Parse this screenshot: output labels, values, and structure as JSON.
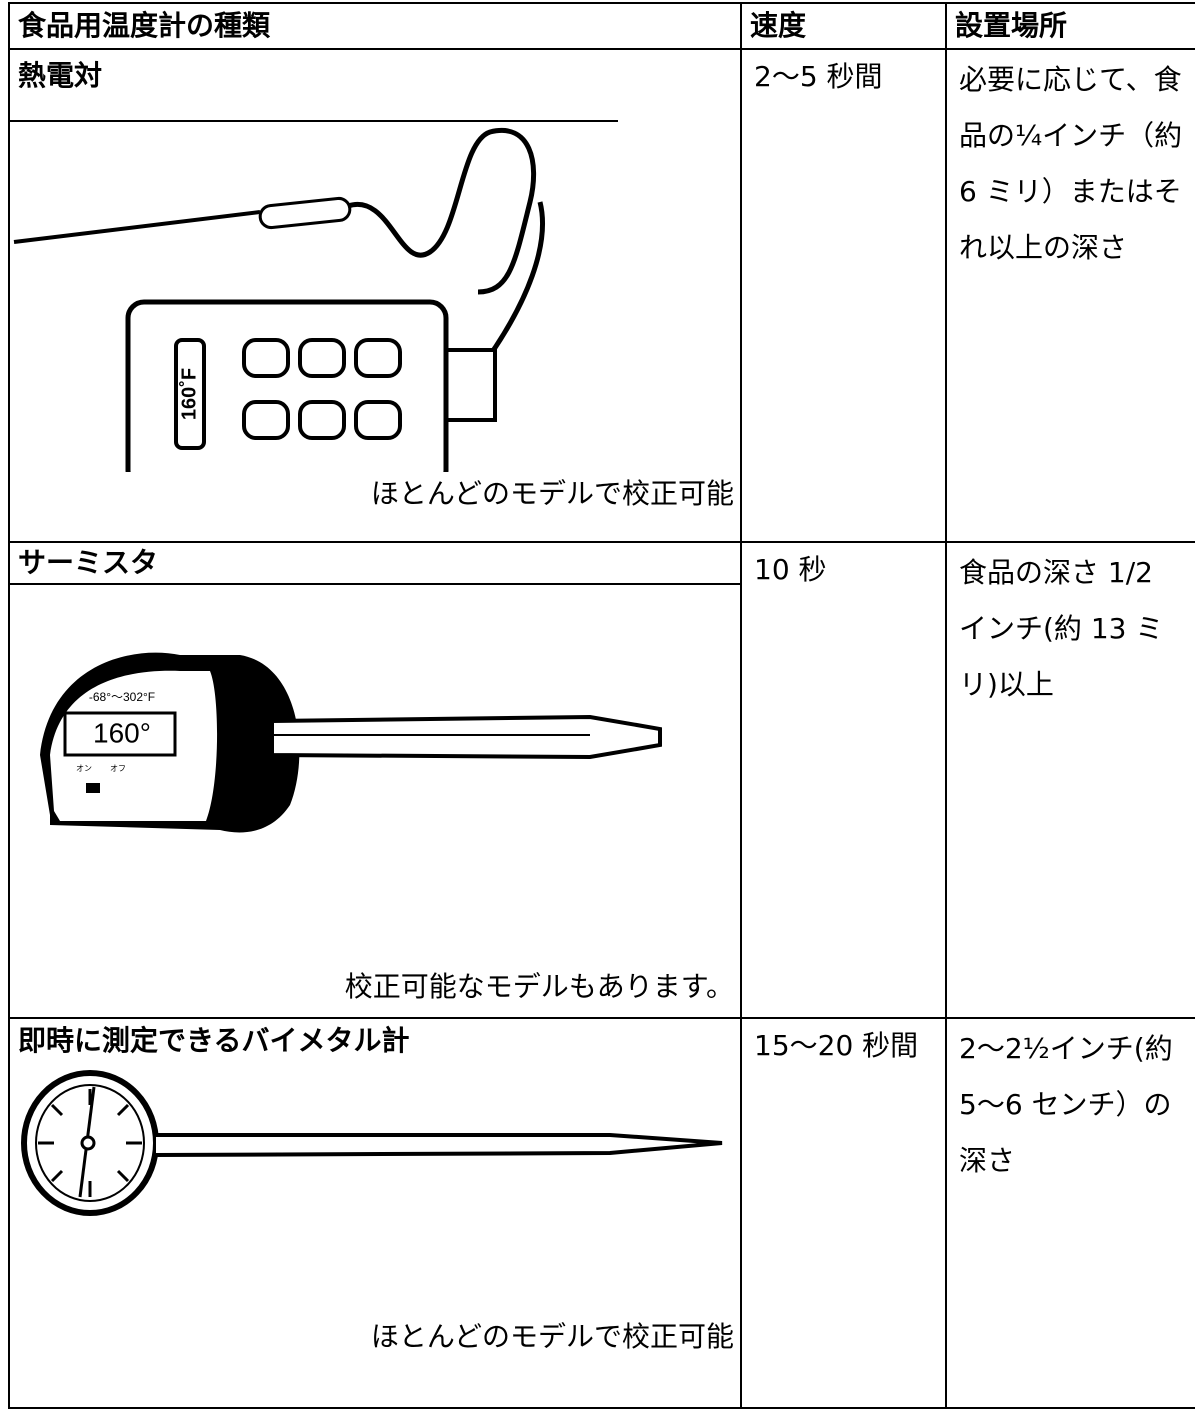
{
  "table": {
    "header": [
      "食品用温度計の種類",
      "速度",
      "設置場所"
    ],
    "rows": [
      {
        "name": "熱電対",
        "speed": "2〜5 秒間",
        "placement": "必要に応じて、食品の¼インチ（約 6 ミリ）またはそれ以上の深さ",
        "note": "ほとんどのモデルで校正可能",
        "illustration": {
          "display": "160˚F"
        }
      },
      {
        "name": "サーミスタ",
        "speed": "10 秒",
        "placement": "食品の深さ 1/2 インチ(約 13 ミリ)以上",
        "note": "校正可能なモデルもあります。",
        "illustration": {
          "range": "-68°～302°F",
          "display": "160°",
          "on": "オン",
          "off": "オフ"
        }
      },
      {
        "name": "即時に測定できるバイメタル計",
        "speed": "15〜20 秒間",
        "placement": "2〜2½インチ(約 5〜6 センチ）の深さ",
        "note": "ほとんどのモデルで校正可能"
      }
    ]
  }
}
